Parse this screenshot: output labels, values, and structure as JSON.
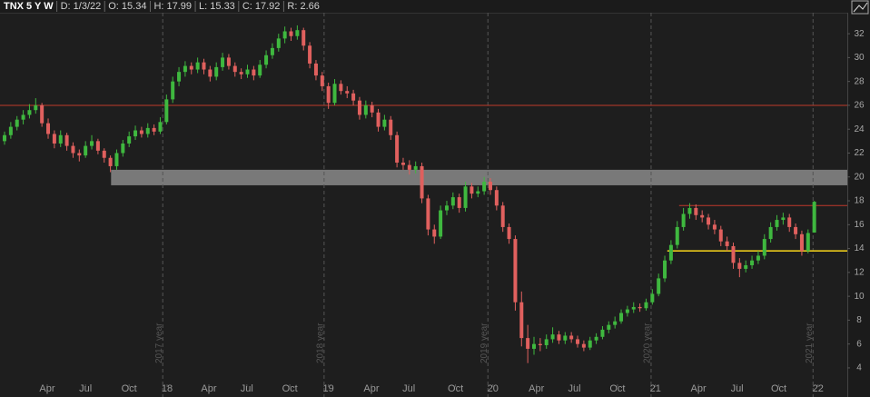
{
  "header": {
    "symbol": "TNX 5 Y W",
    "fields": [
      "D: 1/3/22",
      "O: 15.34",
      "H: 17.99",
      "L: 15.33",
      "C: 17.92",
      "R: 2.66"
    ]
  },
  "chart_data": {
    "type": "candlestick",
    "up_color": "#3fb83f",
    "down_color": "#e0605e",
    "xlim": [
      -0.73,
      135.3
    ],
    "ylim": [
      1.56,
      33.76
    ],
    "yticks": [
      4,
      6,
      8,
      10,
      12,
      14,
      16,
      18,
      20,
      22,
      24,
      26,
      28,
      30,
      32
    ],
    "xticks": [
      {
        "value": 6.85,
        "label": "Apr"
      },
      {
        "value": 13.0,
        "label": "Jul"
      },
      {
        "value": 20.0,
        "label": "Oct"
      },
      {
        "value": 26.1,
        "label": "18"
      },
      {
        "value": 32.8,
        "label": "Apr"
      },
      {
        "value": 38.9,
        "label": "Jul"
      },
      {
        "value": 45.8,
        "label": "Oct"
      },
      {
        "value": 52.0,
        "label": "19"
      },
      {
        "value": 58.9,
        "label": "Apr"
      },
      {
        "value": 64.9,
        "label": "Jul"
      },
      {
        "value": 72.4,
        "label": "Oct"
      },
      {
        "value": 78.4,
        "label": "20"
      },
      {
        "value": 85.4,
        "label": "Apr"
      },
      {
        "value": 91.5,
        "label": "Jul"
      },
      {
        "value": 98.4,
        "label": "Oct"
      },
      {
        "value": 104.5,
        "label": "21"
      },
      {
        "value": 111.4,
        "label": "Apr"
      },
      {
        "value": 117.6,
        "label": "Jul"
      },
      {
        "value": 124.3,
        "label": "Oct"
      },
      {
        "value": 130.6,
        "label": "22"
      }
    ],
    "separators": [
      {
        "value": 25.4,
        "label": "2017 year"
      },
      {
        "value": 51.3,
        "label": "2018 year"
      },
      {
        "value": 77.6,
        "label": "2019 year"
      },
      {
        "value": 103.8,
        "label": "2020 year"
      },
      {
        "value": 129.8,
        "label": "2021 year"
      }
    ],
    "levels": [
      {
        "value": 26,
        "start": -0.73,
        "color": "#c0392b"
      },
      {
        "value": 17.6,
        "start": 108.3,
        "color": "#c0392b"
      },
      {
        "value": 13.8,
        "start": 106.4,
        "color": "#e8c81a"
      }
    ],
    "band": {
      "low": 19.3,
      "high": 20.6,
      "start": 17.1,
      "color": "#8a8a8a"
    },
    "candles": [
      [
        23.0,
        23.8,
        22.7,
        23.5
      ],
      [
        23.5,
        24.6,
        23.2,
        24.2
      ],
      [
        24.2,
        25.1,
        23.9,
        24.8
      ],
      [
        24.8,
        25.6,
        24.4,
        25.2
      ],
      [
        25.2,
        26.1,
        24.9,
        25.6
      ],
      [
        25.6,
        26.6,
        25.3,
        26.0
      ],
      [
        26.0,
        26.2,
        24.2,
        24.5
      ],
      [
        24.5,
        24.9,
        23.2,
        23.6
      ],
      [
        23.6,
        23.9,
        22.4,
        22.8
      ],
      [
        22.8,
        23.9,
        22.5,
        23.5
      ],
      [
        23.5,
        23.7,
        22.2,
        22.6
      ],
      [
        22.6,
        22.9,
        21.6,
        22.0
      ],
      [
        22.0,
        22.3,
        21.3,
        21.8
      ],
      [
        21.8,
        23.0,
        21.6,
        22.6
      ],
      [
        22.6,
        23.5,
        22.3,
        23.0
      ],
      [
        23.0,
        23.2,
        21.9,
        22.2
      ],
      [
        22.2,
        22.4,
        21.2,
        21.6
      ],
      [
        21.6,
        21.8,
        20.4,
        20.9
      ],
      [
        20.9,
        22.3,
        20.6,
        22.0
      ],
      [
        22.0,
        23.1,
        21.7,
        22.8
      ],
      [
        22.8,
        23.8,
        22.5,
        23.4
      ],
      [
        23.4,
        24.3,
        23.1,
        23.9
      ],
      [
        23.9,
        24.2,
        23.3,
        23.6
      ],
      [
        23.6,
        24.5,
        23.3,
        24.1
      ],
      [
        24.1,
        24.4,
        23.5,
        23.8
      ],
      [
        23.8,
        25.0,
        23.6,
        24.6
      ],
      [
        24.6,
        26.9,
        24.4,
        26.5
      ],
      [
        26.5,
        28.4,
        26.2,
        28.0
      ],
      [
        28.0,
        29.2,
        27.6,
        28.8
      ],
      [
        28.8,
        29.7,
        28.4,
        29.3
      ],
      [
        29.3,
        29.6,
        28.6,
        29.0
      ],
      [
        29.0,
        30.0,
        28.7,
        29.6
      ],
      [
        29.6,
        29.9,
        28.6,
        29.0
      ],
      [
        29.0,
        29.3,
        28.0,
        28.4
      ],
      [
        28.4,
        29.6,
        28.1,
        29.2
      ],
      [
        29.2,
        30.4,
        28.9,
        30.0
      ],
      [
        30.0,
        30.3,
        29.0,
        29.3
      ],
      [
        29.3,
        29.6,
        28.4,
        28.8
      ],
      [
        28.8,
        29.1,
        28.2,
        28.6
      ],
      [
        28.6,
        29.4,
        28.3,
        29.0
      ],
      [
        29.0,
        29.3,
        28.1,
        28.5
      ],
      [
        28.5,
        29.8,
        28.3,
        29.4
      ],
      [
        29.4,
        30.6,
        29.1,
        30.2
      ],
      [
        30.2,
        31.2,
        29.9,
        30.8
      ],
      [
        30.8,
        32.0,
        30.5,
        31.6
      ],
      [
        31.6,
        32.6,
        31.2,
        32.2
      ],
      [
        32.2,
        32.5,
        31.4,
        31.8
      ],
      [
        31.8,
        32.7,
        31.5,
        32.3
      ],
      [
        32.3,
        32.5,
        30.6,
        31.0
      ],
      [
        31.0,
        31.3,
        29.1,
        29.5
      ],
      [
        29.5,
        29.8,
        28.1,
        28.5
      ],
      [
        28.5,
        28.8,
        27.2,
        27.6
      ],
      [
        27.6,
        27.9,
        25.7,
        26.2
      ],
      [
        26.2,
        28.2,
        26.0,
        27.8
      ],
      [
        27.8,
        28.1,
        26.9,
        27.2
      ],
      [
        27.2,
        27.6,
        26.6,
        27.0
      ],
      [
        27.0,
        27.3,
        26.0,
        26.4
      ],
      [
        26.4,
        26.7,
        24.8,
        25.2
      ],
      [
        25.2,
        26.4,
        24.9,
        26.0
      ],
      [
        26.0,
        26.3,
        25.0,
        25.4
      ],
      [
        25.4,
        25.7,
        23.8,
        24.2
      ],
      [
        24.2,
        25.2,
        23.9,
        24.8
      ],
      [
        24.8,
        25.1,
        23.1,
        23.5
      ],
      [
        23.5,
        23.8,
        20.8,
        21.2
      ],
      [
        21.2,
        21.6,
        20.6,
        21.0
      ],
      [
        21.0,
        21.4,
        20.2,
        20.6
      ],
      [
        20.6,
        21.3,
        20.3,
        20.9
      ],
      [
        20.9,
        21.2,
        17.8,
        18.2
      ],
      [
        18.2,
        18.5,
        15.1,
        15.6
      ],
      [
        15.6,
        16.0,
        14.4,
        15.0
      ],
      [
        15.0,
        17.6,
        14.8,
        17.2
      ],
      [
        17.2,
        18.0,
        16.8,
        17.6
      ],
      [
        17.6,
        18.7,
        17.3,
        18.3
      ],
      [
        18.3,
        18.6,
        17.0,
        17.4
      ],
      [
        17.4,
        19.6,
        17.1,
        19.2
      ],
      [
        19.2,
        19.5,
        18.2,
        18.6
      ],
      [
        18.6,
        19.2,
        18.3,
        18.8
      ],
      [
        18.8,
        20.0,
        18.5,
        19.6
      ],
      [
        19.6,
        19.9,
        18.5,
        18.9
      ],
      [
        18.9,
        19.2,
        17.2,
        17.6
      ],
      [
        17.6,
        17.9,
        15.4,
        15.8
      ],
      [
        15.8,
        16.1,
        14.4,
        14.8
      ],
      [
        14.8,
        15.1,
        8.8,
        9.5
      ],
      [
        9.5,
        10.4,
        5.8,
        6.5
      ],
      [
        6.5,
        7.6,
        4.4,
        5.6
      ],
      [
        5.6,
        6.6,
        5.1,
        6.0
      ],
      [
        6.0,
        6.5,
        5.4,
        5.9
      ],
      [
        5.9,
        6.8,
        5.6,
        6.4
      ],
      [
        6.4,
        7.4,
        6.1,
        6.8
      ],
      [
        6.8,
        7.1,
        6.0,
        6.3
      ],
      [
        6.3,
        7.0,
        6.0,
        6.7
      ],
      [
        6.7,
        7.0,
        6.1,
        6.4
      ],
      [
        6.4,
        6.7,
        5.7,
        6.0
      ],
      [
        6.0,
        6.3,
        5.4,
        5.7
      ],
      [
        5.7,
        6.6,
        5.5,
        6.3
      ],
      [
        6.3,
        6.9,
        6.0,
        6.6
      ],
      [
        6.6,
        7.5,
        6.4,
        7.2
      ],
      [
        7.2,
        7.9,
        6.9,
        7.6
      ],
      [
        7.6,
        8.3,
        7.3,
        7.9
      ],
      [
        7.9,
        8.9,
        7.7,
        8.6
      ],
      [
        8.6,
        9.2,
        8.3,
        8.9
      ],
      [
        8.9,
        9.5,
        8.6,
        9.1
      ],
      [
        9.1,
        9.4,
        8.7,
        9.0
      ],
      [
        9.0,
        9.8,
        8.8,
        9.5
      ],
      [
        9.5,
        10.6,
        9.3,
        10.2
      ],
      [
        10.2,
        11.9,
        10.0,
        11.5
      ],
      [
        11.5,
        13.4,
        11.2,
        13.0
      ],
      [
        13.0,
        14.7,
        12.7,
        14.3
      ],
      [
        14.3,
        16.3,
        14.0,
        15.8
      ],
      [
        15.8,
        17.4,
        15.5,
        16.9
      ],
      [
        16.9,
        17.8,
        16.5,
        17.4
      ],
      [
        17.4,
        17.7,
        16.4,
        16.8
      ],
      [
        16.8,
        17.2,
        16.2,
        16.6
      ],
      [
        16.6,
        16.9,
        15.6,
        16.0
      ],
      [
        16.0,
        16.4,
        15.2,
        15.6
      ],
      [
        15.6,
        15.9,
        14.2,
        14.6
      ],
      [
        14.6,
        15.0,
        13.8,
        14.2
      ],
      [
        14.2,
        14.5,
        12.3,
        12.8
      ],
      [
        12.8,
        13.2,
        11.6,
        12.3
      ],
      [
        12.3,
        13.0,
        12.0,
        12.6
      ],
      [
        12.6,
        13.4,
        12.3,
        13.0
      ],
      [
        13.0,
        13.8,
        12.7,
        13.4
      ],
      [
        13.4,
        15.2,
        13.1,
        14.8
      ],
      [
        14.8,
        16.2,
        14.5,
        15.8
      ],
      [
        15.8,
        16.8,
        15.5,
        16.4
      ],
      [
        16.4,
        17.0,
        16.0,
        16.6
      ],
      [
        16.6,
        16.9,
        15.4,
        15.8
      ],
      [
        15.8,
        16.1,
        14.8,
        15.2
      ],
      [
        15.2,
        15.5,
        13.4,
        13.8
      ],
      [
        13.8,
        15.6,
        13.6,
        15.3
      ],
      [
        15.34,
        17.99,
        15.33,
        17.92
      ]
    ]
  }
}
